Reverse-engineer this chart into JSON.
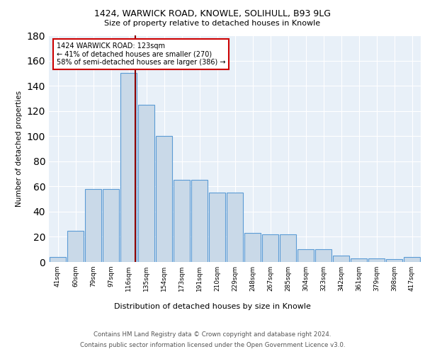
{
  "title1": "1424, WARWICK ROAD, KNOWLE, SOLIHULL, B93 9LG",
  "title2": "Size of property relative to detached houses in Knowle",
  "xlabel": "Distribution of detached houses by size in Knowle",
  "ylabel": "Number of detached properties",
  "categories": [
    "41sqm",
    "60sqm",
    "79sqm",
    "97sqm",
    "116sqm",
    "135sqm",
    "154sqm",
    "173sqm",
    "191sqm",
    "210sqm",
    "229sqm",
    "248sqm",
    "267sqm",
    "285sqm",
    "304sqm",
    "323sqm",
    "342sqm",
    "361sqm",
    "379sqm",
    "398sqm",
    "417sqm"
  ],
  "values": [
    4,
    25,
    58,
    58,
    150,
    125,
    100,
    65,
    65,
    55,
    55,
    23,
    22,
    22,
    10,
    10,
    5,
    3,
    3,
    2,
    4
  ],
  "bar_color": "#c9d9e8",
  "bar_edge_color": "#5b9bd5",
  "bar_edge_width": 0.8,
  "subject_line_color": "#8b0000",
  "annotation_line1": "1424 WARWICK ROAD: 123sqm",
  "annotation_line2": "← 41% of detached houses are smaller (270)",
  "annotation_line3": "58% of semi-detached houses are larger (386) →",
  "annotation_box_color": "white",
  "annotation_box_edge_color": "#cc0000",
  "ylim": [
    0,
    180
  ],
  "yticks": [
    0,
    20,
    40,
    60,
    80,
    100,
    120,
    140,
    160,
    180
  ],
  "bg_color": "#e8f0f8",
  "footer1": "Contains HM Land Registry data © Crown copyright and database right 2024.",
  "footer2": "Contains public sector information licensed under the Open Government Licence v3.0."
}
